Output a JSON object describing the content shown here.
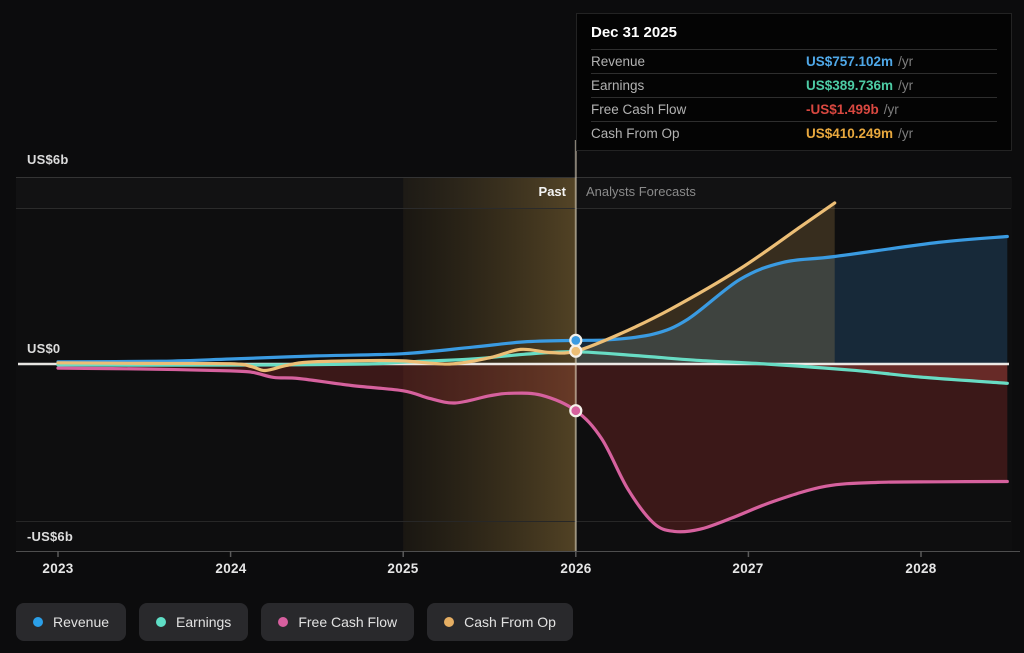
{
  "tooltip": {
    "title": "Dec 31 2025",
    "rows": [
      {
        "label": "Revenue",
        "value": "US$757.102m",
        "suffix": "/yr",
        "color": "#4FA8E8"
      },
      {
        "label": "Earnings",
        "value": "US$389.736m",
        "suffix": "/yr",
        "color": "#4DCBA4"
      },
      {
        "label": "Free Cash Flow",
        "value": "-US$1.499b",
        "suffix": "/yr",
        "color": "#D94840"
      },
      {
        "label": "Cash From Op",
        "value": "US$410.249m",
        "suffix": "/yr",
        "color": "#E8A83E"
      }
    ]
  },
  "axis": {
    "y_top": "US$6b",
    "y_zero": "US$0",
    "y_bottom": "-US$6b",
    "x_labels": [
      "2023",
      "2024",
      "2025",
      "2026",
      "2027",
      "2028"
    ]
  },
  "zones": {
    "past_label": "Past",
    "forecast_label": "Analysts Forecasts"
  },
  "legend": [
    {
      "label": "Revenue",
      "color": "#2B9FE8"
    },
    {
      "label": "Earnings",
      "color": "#5FDEC6"
    },
    {
      "label": "Free Cash Flow",
      "color": "#D75F9F"
    },
    {
      "label": "Cash From Op",
      "color": "#E5AE63"
    }
  ],
  "chart_data": {
    "type": "line",
    "title": "",
    "x_unit": "year",
    "y_unit": "US$ billions",
    "x_range": [
      2023,
      2028.5
    ],
    "y_range": [
      -6,
      6
    ],
    "gridline_values": [
      6,
      5,
      0,
      -5,
      -6
    ],
    "divider_x": 2026,
    "past_band": [
      2025,
      2026
    ],
    "legend_position": "bottom-left",
    "series": [
      {
        "name": "Revenue",
        "color": "#3A9BE2",
        "area_color": "rgba(52,125,185,0.25)",
        "area_from": 2026,
        "area_to": 2028.5,
        "points": [
          [
            2023,
            0.07
          ],
          [
            2023.6,
            0.09
          ],
          [
            2024,
            0.16
          ],
          [
            2024.5,
            0.26
          ],
          [
            2025,
            0.33
          ],
          [
            2025.4,
            0.54
          ],
          [
            2025.7,
            0.71
          ],
          [
            2026,
            0.757
          ],
          [
            2026.2,
            0.78
          ],
          [
            2026.45,
            0.96
          ],
          [
            2026.65,
            1.44
          ],
          [
            2026.95,
            2.71
          ],
          [
            2027.2,
            3.26
          ],
          [
            2027.5,
            3.45
          ],
          [
            2028.1,
            3.9
          ],
          [
            2028.5,
            4.09
          ]
        ]
      },
      {
        "name": "Earnings",
        "color": "#68DCC4",
        "area_color": "rgba(195,80,70,0.32)",
        "area_from": 2027.1,
        "area_to": 2028.5,
        "points": [
          [
            2023,
            -0.03
          ],
          [
            2023.7,
            -0.04
          ],
          [
            2024.3,
            -0.03
          ],
          [
            2024.8,
            0.0
          ],
          [
            2025,
            0.06
          ],
          [
            2025.4,
            0.16
          ],
          [
            2025.7,
            0.31
          ],
          [
            2026,
            0.39
          ],
          [
            2026.35,
            0.27
          ],
          [
            2026.7,
            0.12
          ],
          [
            2027.1,
            0.0
          ],
          [
            2027.6,
            -0.2
          ],
          [
            2028,
            -0.42
          ],
          [
            2028.5,
            -0.62
          ]
        ]
      },
      {
        "name": "Free Cash Flow",
        "color": "#D6619E",
        "area_color": "rgba(148,44,44,0.34)",
        "area_from": 2023,
        "area_to": 2028.5,
        "points": [
          [
            2023,
            -0.13
          ],
          [
            2023.5,
            -0.16
          ],
          [
            2024,
            -0.22
          ],
          [
            2024.13,
            -0.27
          ],
          [
            2024.25,
            -0.43
          ],
          [
            2024.4,
            -0.47
          ],
          [
            2024.7,
            -0.69
          ],
          [
            2025,
            -0.86
          ],
          [
            2025.15,
            -1.1
          ],
          [
            2025.3,
            -1.25
          ],
          [
            2025.5,
            -1.02
          ],
          [
            2025.62,
            -0.94
          ],
          [
            2025.8,
            -1.0
          ],
          [
            2026,
            -1.499
          ],
          [
            2026.15,
            -2.4
          ],
          [
            2026.3,
            -4.0
          ],
          [
            2026.45,
            -5.1
          ],
          [
            2026.57,
            -5.37
          ],
          [
            2026.72,
            -5.3
          ],
          [
            2026.9,
            -4.95
          ],
          [
            2027.15,
            -4.4
          ],
          [
            2027.45,
            -3.92
          ],
          [
            2027.75,
            -3.8
          ],
          [
            2028.1,
            -3.78
          ],
          [
            2028.5,
            -3.77
          ]
        ]
      },
      {
        "name": "Cash From Op",
        "color": "#ECBE76",
        "area_color": "rgba(205,160,85,0.22)",
        "area_from": 2026,
        "area_to": 2027.5,
        "points": [
          [
            2023,
            0.04
          ],
          [
            2023.5,
            0.02
          ],
          [
            2024,
            0.01
          ],
          [
            2024.12,
            -0.08
          ],
          [
            2024.2,
            -0.21
          ],
          [
            2024.32,
            -0.05
          ],
          [
            2024.45,
            0.06
          ],
          [
            2024.8,
            0.11
          ],
          [
            2025,
            0.1
          ],
          [
            2025.27,
            0.0
          ],
          [
            2025.5,
            0.2
          ],
          [
            2025.68,
            0.47
          ],
          [
            2025.85,
            0.37
          ],
          [
            2026,
            0.41
          ],
          [
            2026.25,
            0.95
          ],
          [
            2026.55,
            1.76
          ],
          [
            2026.95,
            3.05
          ],
          [
            2027.3,
            4.4
          ],
          [
            2027.5,
            5.17
          ]
        ]
      }
    ],
    "markers": [
      {
        "series": "Cash From Op",
        "x": 2026,
        "y": 0.41
      },
      {
        "series": "Revenue",
        "x": 2026,
        "y": 0.757
      },
      {
        "series": "Free Cash Flow",
        "x": 2026,
        "y": -1.499
      }
    ]
  }
}
